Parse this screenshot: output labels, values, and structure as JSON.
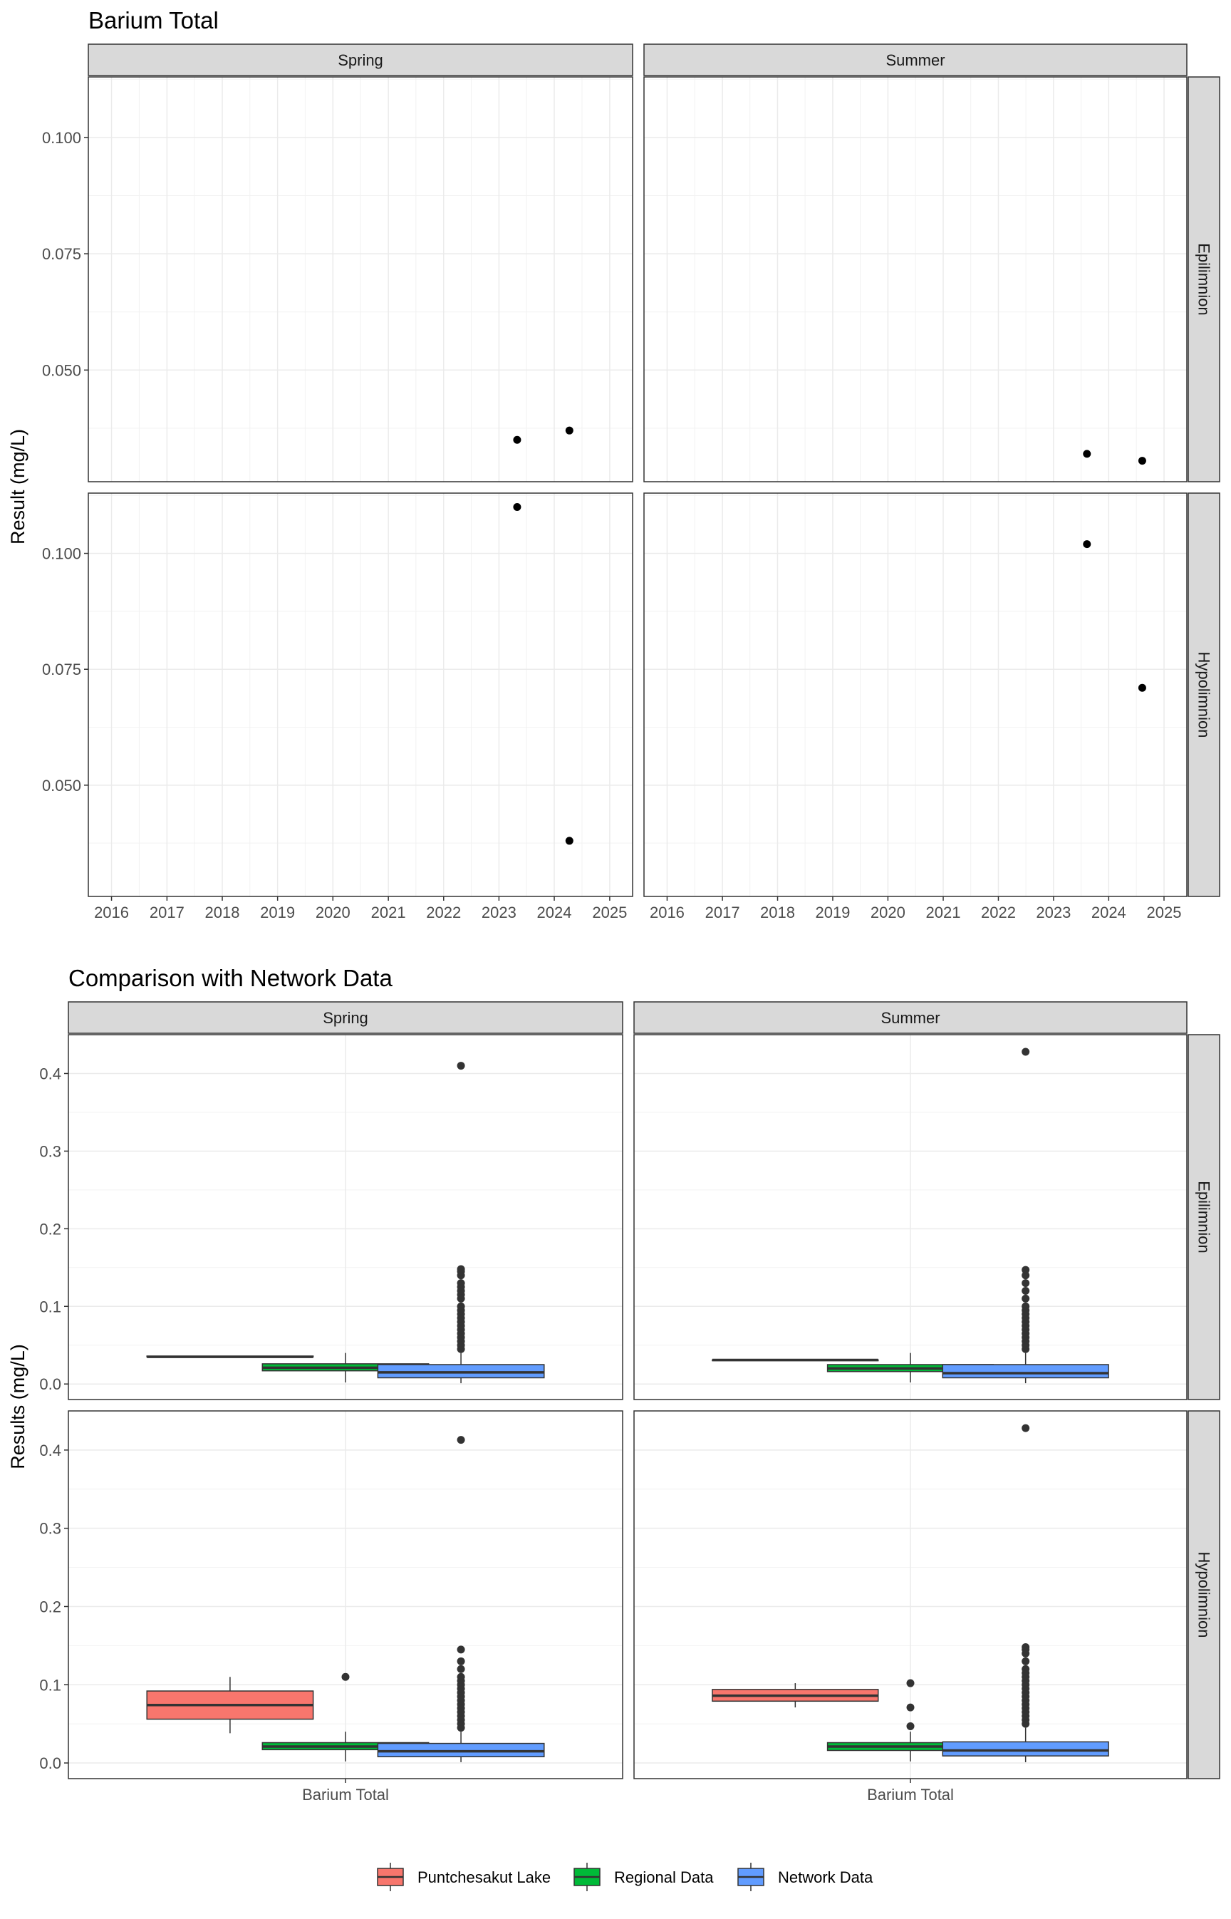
{
  "chart_data": [
    {
      "type": "scatter",
      "title": "Barium Total",
      "ylabel": "Result (mg/L)",
      "xlabel": "",
      "columns": [
        "Spring",
        "Summer"
      ],
      "rows": [
        "Epilimnion",
        "Hypolimnion"
      ],
      "x_ticks": [
        "2016",
        "2017",
        "2018",
        "2019",
        "2020",
        "2021",
        "2022",
        "2023",
        "2024",
        "2025"
      ],
      "y_ticks": [
        "0.050",
        "0.075",
        "0.100"
      ],
      "xlim": [
        "2015-08-01",
        "2025-06-01"
      ],
      "ylim": [
        0.026,
        0.113
      ],
      "grid": true,
      "panels": [
        {
          "column": "Spring",
          "row": "Epilimnion",
          "points": [
            {
              "x": "2023-05-01",
              "y": 0.035
            },
            {
              "x": "2024-04-10",
              "y": 0.037
            }
          ]
        },
        {
          "column": "Summer",
          "row": "Epilimnion",
          "points": [
            {
              "x": "2023-08-10",
              "y": 0.032
            },
            {
              "x": "2024-08-10",
              "y": 0.0305
            }
          ]
        },
        {
          "column": "Spring",
          "row": "Hypolimnion",
          "points": [
            {
              "x": "2023-05-01",
              "y": 0.11
            },
            {
              "x": "2024-04-10",
              "y": 0.038
            }
          ]
        },
        {
          "column": "Summer",
          "row": "Hypolimnion",
          "points": [
            {
              "x": "2023-08-10",
              "y": 0.102
            },
            {
              "x": "2024-08-10",
              "y": 0.071
            }
          ]
        }
      ]
    },
    {
      "type": "box",
      "title": "Comparison with Network Data",
      "ylabel": "Results (mg/L)",
      "columns": [
        "Spring",
        "Summer"
      ],
      "rows": [
        "Epilimnion",
        "Hypolimnion"
      ],
      "categories": [
        "Barium Total"
      ],
      "y_ticks": [
        "0.0",
        "0.1",
        "0.2",
        "0.3",
        "0.4"
      ],
      "ylim": [
        -0.02,
        0.45
      ],
      "grid": true,
      "series": [
        {
          "name": "Puntchesakut Lake",
          "color": "#F8766D"
        },
        {
          "name": "Regional Data",
          "color": "#00BA38"
        },
        {
          "name": "Network Data",
          "color": "#619CFF"
        }
      ],
      "legend_position": "bottom",
      "panels": [
        {
          "column": "Spring",
          "row": "Epilimnion",
          "boxes": [
            {
              "series": "Puntchesakut Lake",
              "min": 0.035,
              "q1": 0.035,
              "median": 0.035,
              "q3": 0.036,
              "max": 0.036,
              "outliers": []
            },
            {
              "series": "Regional Data",
              "min": 0.002,
              "q1": 0.017,
              "median": 0.021,
              "q3": 0.026,
              "max": 0.04,
              "outliers": []
            },
            {
              "series": "Network Data",
              "min": 0.001,
              "q1": 0.008,
              "median": 0.015,
              "q3": 0.025,
              "max": 0.04,
              "outliers": [
                0.045,
                0.05,
                0.055,
                0.06,
                0.065,
                0.07,
                0.075,
                0.08,
                0.085,
                0.09,
                0.095,
                0.1,
                0.11,
                0.115,
                0.12,
                0.125,
                0.13,
                0.14,
                0.145,
                0.148,
                0.41
              ]
            }
          ]
        },
        {
          "column": "Summer",
          "row": "Epilimnion",
          "boxes": [
            {
              "series": "Puntchesakut Lake",
              "min": 0.03,
              "q1": 0.03,
              "median": 0.031,
              "q3": 0.031,
              "max": 0.032,
              "outliers": []
            },
            {
              "series": "Regional Data",
              "min": 0.002,
              "q1": 0.016,
              "median": 0.02,
              "q3": 0.025,
              "max": 0.04,
              "outliers": []
            },
            {
              "series": "Network Data",
              "min": 0.001,
              "q1": 0.008,
              "median": 0.014,
              "q3": 0.025,
              "max": 0.04,
              "outliers": [
                0.045,
                0.05,
                0.055,
                0.06,
                0.065,
                0.07,
                0.075,
                0.08,
                0.085,
                0.09,
                0.095,
                0.1,
                0.11,
                0.12,
                0.13,
                0.14,
                0.147,
                0.428
              ]
            }
          ]
        },
        {
          "column": "Spring",
          "row": "Hypolimnion",
          "boxes": [
            {
              "series": "Puntchesakut Lake",
              "min": 0.038,
              "q1": 0.056,
              "median": 0.074,
              "q3": 0.092,
              "max": 0.11,
              "outliers": []
            },
            {
              "series": "Regional Data",
              "min": 0.002,
              "q1": 0.017,
              "median": 0.021,
              "q3": 0.026,
              "max": 0.04,
              "outliers": [
                0.11
              ]
            },
            {
              "series": "Network Data",
              "min": 0.001,
              "q1": 0.008,
              "median": 0.015,
              "q3": 0.025,
              "max": 0.04,
              "outliers": [
                0.045,
                0.05,
                0.055,
                0.06,
                0.065,
                0.07,
                0.075,
                0.08,
                0.085,
                0.09,
                0.095,
                0.1,
                0.105,
                0.11,
                0.12,
                0.13,
                0.145,
                0.413
              ]
            }
          ]
        },
        {
          "column": "Summer",
          "row": "Hypolimnion",
          "boxes": [
            {
              "series": "Puntchesakut Lake",
              "min": 0.071,
              "q1": 0.079,
              "median": 0.086,
              "q3": 0.094,
              "max": 0.102,
              "outliers": []
            },
            {
              "series": "Regional Data",
              "min": 0.002,
              "q1": 0.016,
              "median": 0.021,
              "q3": 0.026,
              "max": 0.04,
              "outliers": [
                0.047,
                0.071,
                0.102
              ]
            },
            {
              "series": "Network Data",
              "min": 0.001,
              "q1": 0.009,
              "median": 0.016,
              "q3": 0.027,
              "max": 0.045,
              "outliers": [
                0.05,
                0.055,
                0.06,
                0.065,
                0.07,
                0.075,
                0.08,
                0.085,
                0.09,
                0.095,
                0.1,
                0.105,
                0.11,
                0.115,
                0.12,
                0.13,
                0.14,
                0.145,
                0.148,
                0.428
              ]
            }
          ]
        }
      ]
    }
  ]
}
